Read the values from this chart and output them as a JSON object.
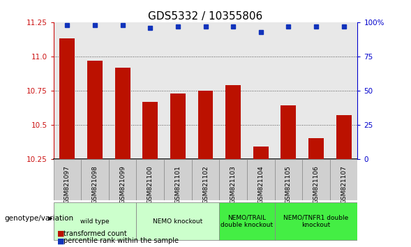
{
  "title": "GDS5332 / 10355806",
  "samples": [
    "GSM821097",
    "GSM821098",
    "GSM821099",
    "GSM821100",
    "GSM821101",
    "GSM821102",
    "GSM821103",
    "GSM821104",
    "GSM821105",
    "GSM821106",
    "GSM821107"
  ],
  "bar_values": [
    11.13,
    10.97,
    10.92,
    10.67,
    10.73,
    10.75,
    10.79,
    10.34,
    10.64,
    10.4,
    10.57
  ],
  "percentile_values": [
    98,
    98,
    98,
    96,
    97,
    97,
    97,
    93,
    97,
    97,
    97
  ],
  "ylim_left": [
    10.25,
    11.25
  ],
  "ylim_right": [
    0,
    100
  ],
  "yticks_left": [
    10.25,
    10.5,
    10.75,
    11.0,
    11.25
  ],
  "yticks_right": [
    0,
    25,
    50,
    75,
    100
  ],
  "bar_color": "#bb1100",
  "percentile_color": "#1133bb",
  "group_defs": [
    {
      "label": "wild type",
      "cols": [
        0,
        1,
        2
      ],
      "color": "#ccffcc",
      "bold": false
    },
    {
      "label": "NEMO knockout",
      "cols": [
        3,
        4,
        5
      ],
      "color": "#ccffcc",
      "bold": false
    },
    {
      "label": "NEMO/TRAIL\ndouble knockout",
      "cols": [
        6,
        7
      ],
      "color": "#44ee44",
      "bold": false
    },
    {
      "label": "NEMO/TNFR1 double\nknockout",
      "cols": [
        8,
        9,
        10
      ],
      "color": "#44ee44",
      "bold": false
    }
  ],
  "group_label": "genotype/variation",
  "legend_bar_label": "transformed count",
  "legend_pct_label": "percentile rank within the sample",
  "background_color": "#ffffff",
  "plot_bg": "#e8e8e8",
  "tick_box_color": "#d0d0d0",
  "dotted_line_color": "#555555",
  "title_fontsize": 11,
  "tick_fontsize": 7.5,
  "bar_width": 0.55
}
